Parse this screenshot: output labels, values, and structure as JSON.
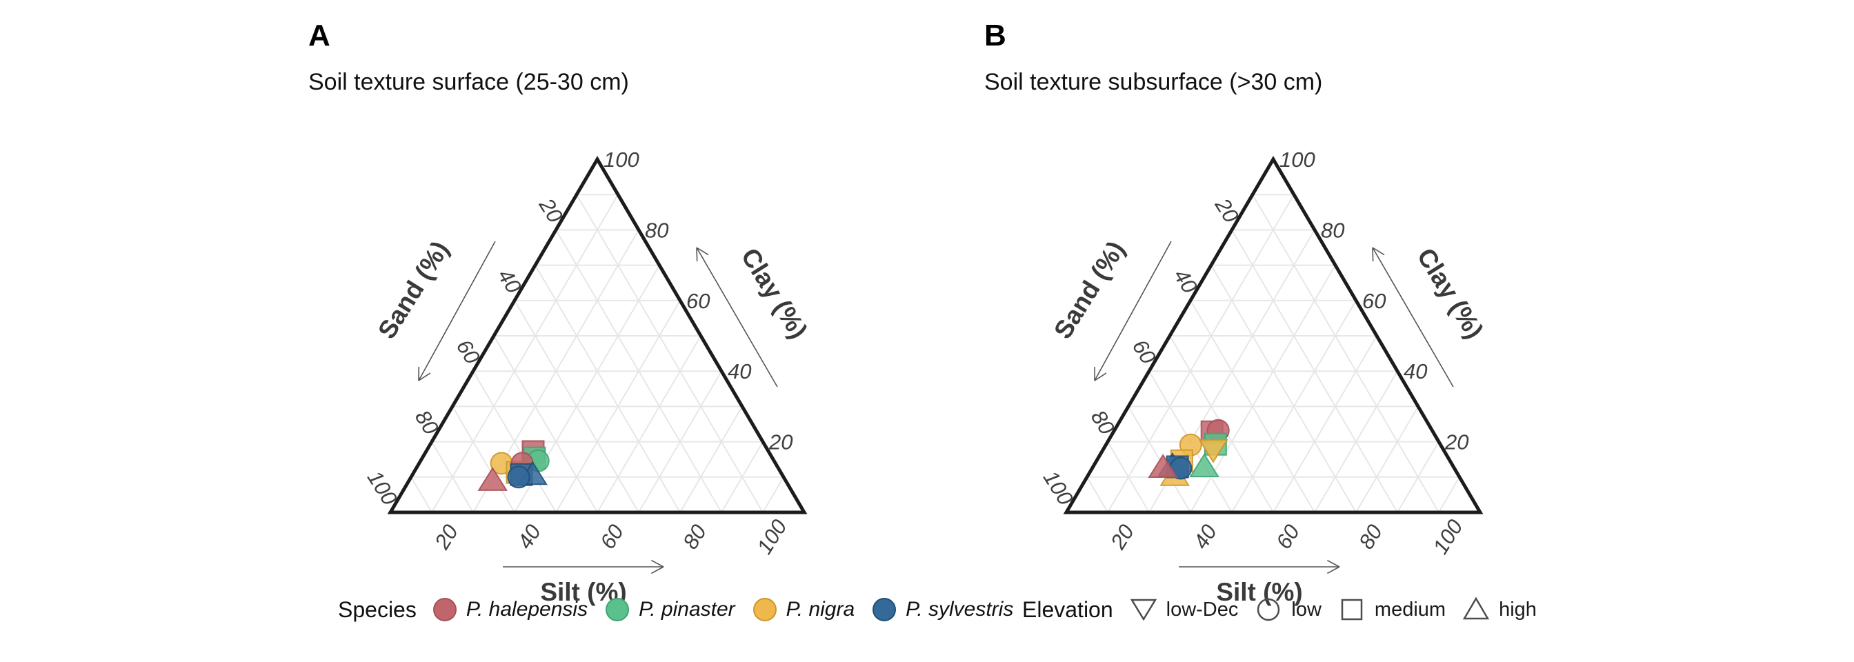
{
  "panels": [
    {
      "label": "A",
      "subtitle": "Soil texture surface (25-30 cm)"
    },
    {
      "label": "B",
      "subtitle": "Soil texture subsurface (>30 cm)"
    }
  ],
  "axes": {
    "left_title": "Sand (%)",
    "right_title": "Clay (%)",
    "bottom_title": "Silt (%)",
    "sand_ticks": [
      20,
      40,
      60,
      80,
      100
    ],
    "clay_ticks": [
      100,
      80,
      60,
      40,
      20
    ],
    "silt_ticks": [
      20,
      40,
      60,
      80,
      100
    ],
    "grid_step": 10,
    "arrows": {
      "sand": "down-left",
      "clay": "up-toward-apex",
      "silt": "right"
    }
  },
  "legend": {
    "species": {
      "title": "Species",
      "items": [
        {
          "label": "P. halepensis",
          "color": "#C1656C",
          "stroke": "#A84F58"
        },
        {
          "label": "P. pinaster",
          "color": "#5CC08C",
          "stroke": "#3FA471"
        },
        {
          "label": "P. nigra",
          "color": "#EFB84C",
          "stroke": "#CC9629"
        },
        {
          "label": "P. sylvestris",
          "color": "#34699A",
          "stroke": "#1F4F75"
        }
      ]
    },
    "elevation": {
      "title": "Elevation",
      "items": [
        {
          "label": "low-Dec",
          "shape": "triangle-down"
        },
        {
          "label": "low",
          "shape": "circle"
        },
        {
          "label": "medium",
          "shape": "square"
        },
        {
          "label": "high",
          "shape": "triangle-up"
        }
      ]
    }
  },
  "chart_data": [
    {
      "type": "scatter",
      "subtype": "ternary",
      "title": "Soil texture surface (25-30 cm)",
      "axis_titles": {
        "left": "Sand (%)",
        "right": "Clay (%)",
        "bottom": "Silt (%)"
      },
      "axis_range": [
        0,
        100
      ],
      "grid": "on, every 10%",
      "points": [
        {
          "species": "P. halepensis",
          "elevation": "medium",
          "shape": "square",
          "sand": 56.9,
          "silt": 25.9,
          "clay": 17.2
        },
        {
          "species": "P. pinaster",
          "elevation": "medium",
          "shape": "square",
          "sand": 57.5,
          "silt": 27.1,
          "clay": 15.4
        },
        {
          "species": "P. pinaster",
          "elevation": "low",
          "shape": "circle",
          "sand": 57.0,
          "silt": 28.4,
          "clay": 14.6
        },
        {
          "species": "P. nigra",
          "elevation": "low",
          "shape": "circle",
          "sand": 66.2,
          "silt": 19.9,
          "clay": 13.9
        },
        {
          "species": "P. nigra",
          "elevation": "medium",
          "shape": "square",
          "sand": 63.7,
          "silt": 25.0,
          "clay": 11.3
        },
        {
          "species": "P. halepensis",
          "elevation": "low",
          "shape": "circle",
          "sand": 61.2,
          "silt": 24.9,
          "clay": 13.9
        },
        {
          "species": "P. sylvestris",
          "elevation": "medium",
          "shape": "square",
          "sand": 63.0,
          "silt": 26.3,
          "clay": 10.7
        },
        {
          "species": "P. sylvestris",
          "elevation": "high",
          "shape": "triangle-up",
          "sand": 60.3,
          "silt": 29.0,
          "clay": 10.7
        },
        {
          "species": "P. sylvestris",
          "elevation": "low",
          "shape": "circle",
          "sand": 64.0,
          "silt": 26.0,
          "clay": 10.0
        },
        {
          "species": "P. halepensis",
          "elevation": "high",
          "shape": "triangle-up",
          "sand": 70.8,
          "silt": 20.2,
          "clay": 9.0
        }
      ]
    },
    {
      "type": "scatter",
      "subtype": "ternary",
      "title": "Soil texture subsurface (>30 cm)",
      "axis_titles": {
        "left": "Sand (%)",
        "right": "Clay (%)",
        "bottom": "Silt (%)"
      },
      "axis_range": [
        0,
        100
      ],
      "grid": "on, every 10%",
      "points": [
        {
          "species": "P. halepensis",
          "elevation": "medium",
          "shape": "square",
          "sand": 53.4,
          "silt": 23.8,
          "clay": 22.8
        },
        {
          "species": "P. halepensis",
          "elevation": "low",
          "shape": "circle",
          "sand": 51.7,
          "silt": 25.1,
          "clay": 23.2
        },
        {
          "species": "P. pinaster",
          "elevation": "medium",
          "shape": "square",
          "sand": 54.3,
          "silt": 26.4,
          "clay": 19.3
        },
        {
          "species": "P. nigra",
          "elevation": "low-Dec",
          "shape": "triangle-down",
          "sand": 55.6,
          "silt": 26.6,
          "clay": 17.8
        },
        {
          "species": "P. nigra",
          "elevation": "low",
          "shape": "circle",
          "sand": 60.4,
          "silt": 20.5,
          "clay": 19.1
        },
        {
          "species": "P. nigra",
          "elevation": "high",
          "shape": "triangle-up",
          "sand": 68.7,
          "silt": 21.0,
          "clay": 10.4
        },
        {
          "species": "P. nigra",
          "elevation": "medium",
          "shape": "square",
          "sand": 64.8,
          "silt": 20.6,
          "clay": 14.6
        },
        {
          "species": "P. pinaster",
          "elevation": "high",
          "shape": "triangle-up",
          "sand": 60.2,
          "silt": 26.9,
          "clay": 12.9
        },
        {
          "species": "P. sylvestris",
          "elevation": "high",
          "shape": "triangle-up",
          "sand": 67.8,
          "silt": 19.1,
          "clay": 13.1
        },
        {
          "species": "P. sylvestris",
          "elevation": "medium",
          "shape": "square",
          "sand": 66.7,
          "silt": 20.4,
          "clay": 12.9
        },
        {
          "species": "P. sylvestris",
          "elevation": "low",
          "shape": "circle",
          "sand": 66.1,
          "silt": 21.4,
          "clay": 12.5
        },
        {
          "species": "P. halepensis",
          "elevation": "high",
          "shape": "triangle-up",
          "sand": 70.3,
          "silt": 17.0,
          "clay": 12.7
        }
      ]
    }
  ]
}
